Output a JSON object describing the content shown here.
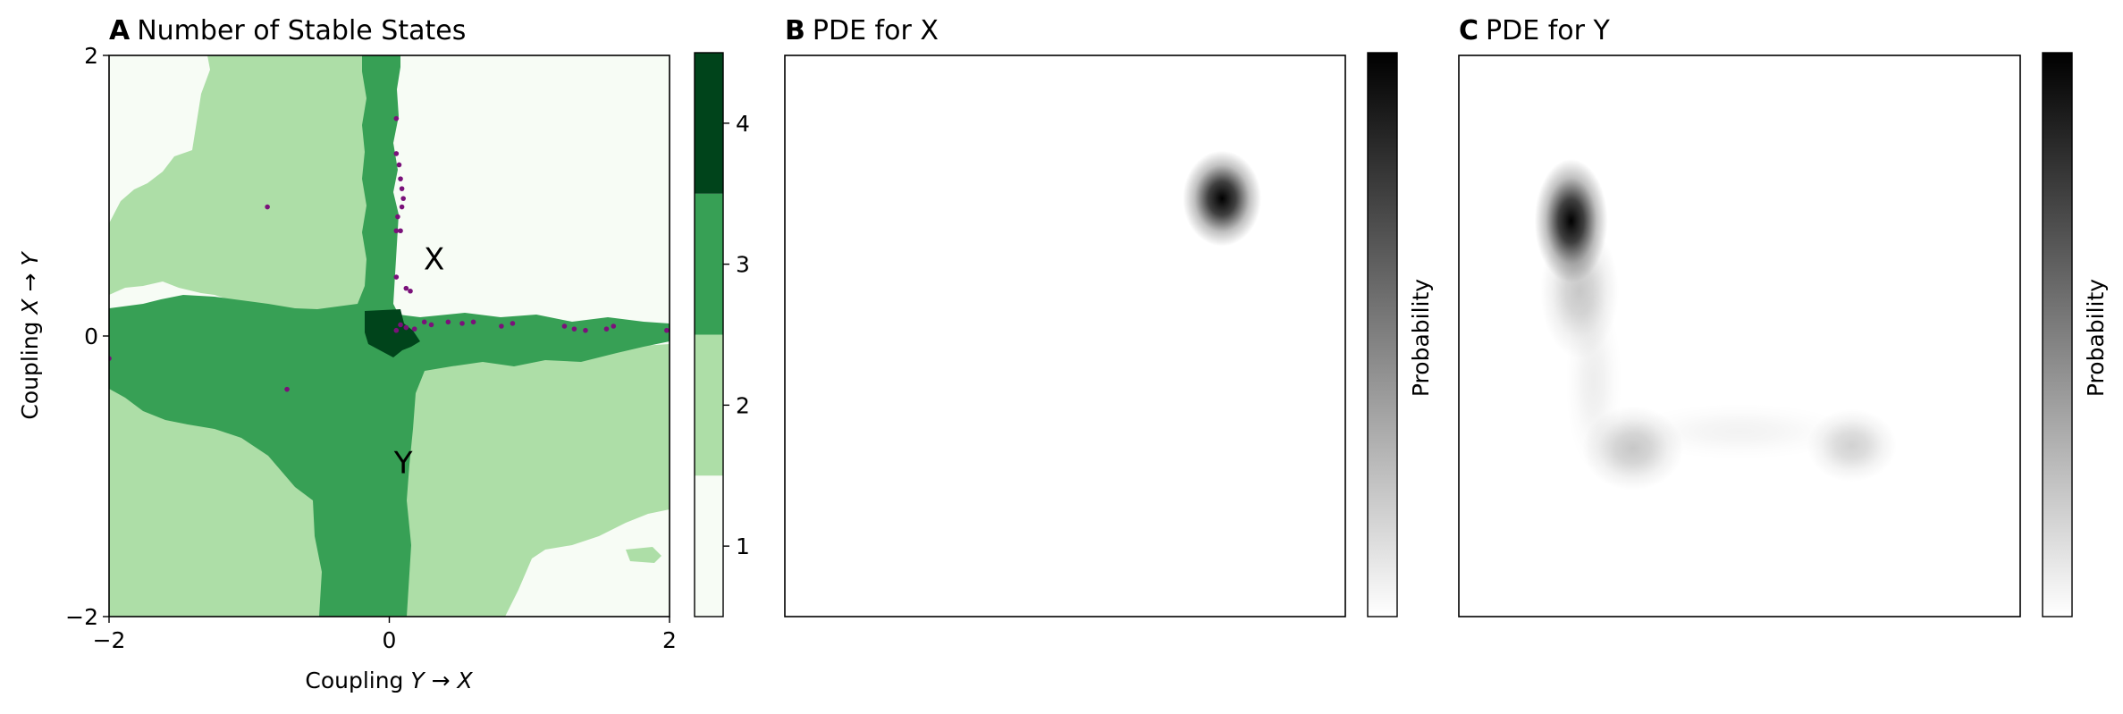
{
  "chart_data": [
    {
      "type": "heatmap",
      "panel_letter": "A",
      "title": "Number of Stable States",
      "xlabel_prefix": "Coupling ",
      "xlabel_math": "Y → X",
      "ylabel_prefix": "Coupling ",
      "ylabel_math": "X → Y",
      "xlim": [
        -2,
        2
      ],
      "ylim": [
        -2,
        2
      ],
      "xticks": [
        -2,
        0,
        2
      ],
      "yticks": [
        -2,
        0,
        2
      ],
      "xtick_labels": [
        "−2",
        "0",
        "2"
      ],
      "ytick_labels": [
        "−2",
        "0",
        "2"
      ],
      "colorbar": {
        "range": [
          0.5,
          4.5
        ],
        "ticks": [
          1,
          2,
          3,
          4
        ],
        "tick_labels": [
          "1",
          "2",
          "3",
          "4"
        ],
        "levels": [
          1,
          2,
          3,
          4
        ],
        "colors": [
          "#f7fcf5",
          "#addea7",
          "#37a055",
          "#00441b"
        ]
      },
      "regions": [
        {
          "value": 1,
          "area": "top-right quadrant and upper-left corner, bottom-right corner"
        },
        {
          "value": 2,
          "area": "left and lower-right wedges"
        },
        {
          "value": 3,
          "area": "horizontal and vertical bands through origin"
        },
        {
          "value": 4,
          "area": "small patch at origin"
        }
      ],
      "annotations": [
        {
          "text": "X",
          "x": 0.32,
          "y": 0.55
        },
        {
          "text": "Y",
          "x": 0.1,
          "y": -0.9
        }
      ],
      "scatter_points": [
        [
          0.05,
          1.55
        ],
        [
          0.05,
          1.3
        ],
        [
          0.07,
          1.22
        ],
        [
          0.08,
          1.12
        ],
        [
          0.09,
          1.05
        ],
        [
          0.1,
          0.98
        ],
        [
          0.09,
          0.92
        ],
        [
          0.06,
          0.85
        ],
        [
          0.05,
          0.75
        ],
        [
          0.08,
          0.75
        ],
        [
          0.05,
          0.42
        ],
        [
          0.15,
          0.32
        ],
        [
          0.12,
          0.34
        ],
        [
          0.08,
          0.08
        ],
        [
          0.12,
          0.06
        ],
        [
          0.18,
          0.05
        ],
        [
          0.05,
          0.04
        ],
        [
          0.25,
          0.1
        ],
        [
          0.3,
          0.08
        ],
        [
          0.42,
          0.1
        ],
        [
          0.52,
          0.09
        ],
        [
          0.6,
          0.1
        ],
        [
          0.8,
          0.07
        ],
        [
          0.88,
          0.09
        ],
        [
          1.25,
          0.07
        ],
        [
          1.32,
          0.05
        ],
        [
          1.4,
          0.04
        ],
        [
          1.55,
          0.05
        ],
        [
          1.6,
          0.07
        ],
        [
          1.98,
          0.04
        ],
        [
          -0.87,
          0.92
        ],
        [
          -0.73,
          -0.38
        ],
        [
          -2.0,
          -0.16
        ]
      ]
    },
    {
      "type": "heatmap",
      "panel_letter": "B",
      "title": "PDE for X",
      "colorbar_label": "Probability",
      "blobs": [
        {
          "x": 0.78,
          "y": 0.745,
          "rx": 0.07,
          "ry": 0.085,
          "intensity": 1.0
        }
      ]
    },
    {
      "type": "heatmap",
      "panel_letter": "C",
      "title": "PDE for Y",
      "colorbar_label": "Probability",
      "blobs": [
        {
          "x": 0.2,
          "y": 0.705,
          "rx": 0.065,
          "ry": 0.11,
          "intensity": 1.0
        },
        {
          "x": 0.215,
          "y": 0.58,
          "rx": 0.07,
          "ry": 0.12,
          "intensity": 0.22
        },
        {
          "x": 0.31,
          "y": 0.3,
          "rx": 0.09,
          "ry": 0.075,
          "intensity": 0.22
        },
        {
          "x": 0.7,
          "y": 0.305,
          "rx": 0.08,
          "ry": 0.065,
          "intensity": 0.18
        },
        {
          "x": 0.5,
          "y": 0.33,
          "rx": 0.2,
          "ry": 0.05,
          "intensity": 0.05
        },
        {
          "x": 0.24,
          "y": 0.42,
          "rx": 0.05,
          "ry": 0.16,
          "intensity": 0.07
        }
      ]
    }
  ]
}
